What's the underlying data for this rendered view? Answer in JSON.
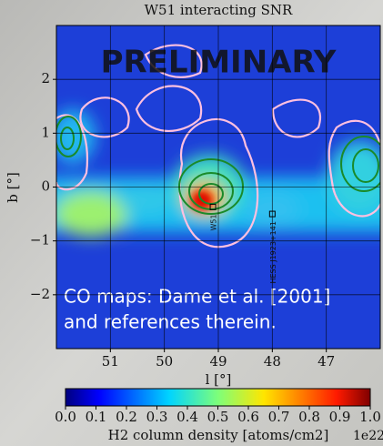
{
  "chart_data": {
    "type": "heatmap",
    "title": "W51 interacting SNR",
    "xlabel": "l [°]",
    "ylabel": "b [°]",
    "xlim": [
      52,
      46
    ],
    "ylim": [
      -3,
      3
    ],
    "xticks": [
      51,
      50,
      49,
      48,
      47
    ],
    "yticks": [
      {
        "value": -2,
        "label": "−2"
      },
      {
        "value": -1,
        "label": "−1"
      },
      0,
      1,
      2
    ],
    "grid": true,
    "annotations": [
      "PRELIMINARY",
      "CO maps: Dame et al. [2001]",
      "and references therein."
    ],
    "sources": [
      {
        "name": "W51",
        "l": 49.1,
        "b": -0.37
      },
      {
        "name": "HESS J1923+141",
        "l": 48.0,
        "b": -0.5
      }
    ],
    "colorbar": {
      "label": "H2 column density [atoms/cm2]",
      "offset_text": "1e22",
      "colormap": "jet",
      "clim": [
        0,
        1.0
      ],
      "ticks": [
        {
          "value": 0,
          "label": "0.0"
        },
        0.1,
        0.2,
        0.3,
        0.4,
        0.5,
        0.6,
        0.7,
        0.8,
        0.9,
        {
          "value": 1,
          "label": "1.0"
        }
      ]
    }
  }
}
